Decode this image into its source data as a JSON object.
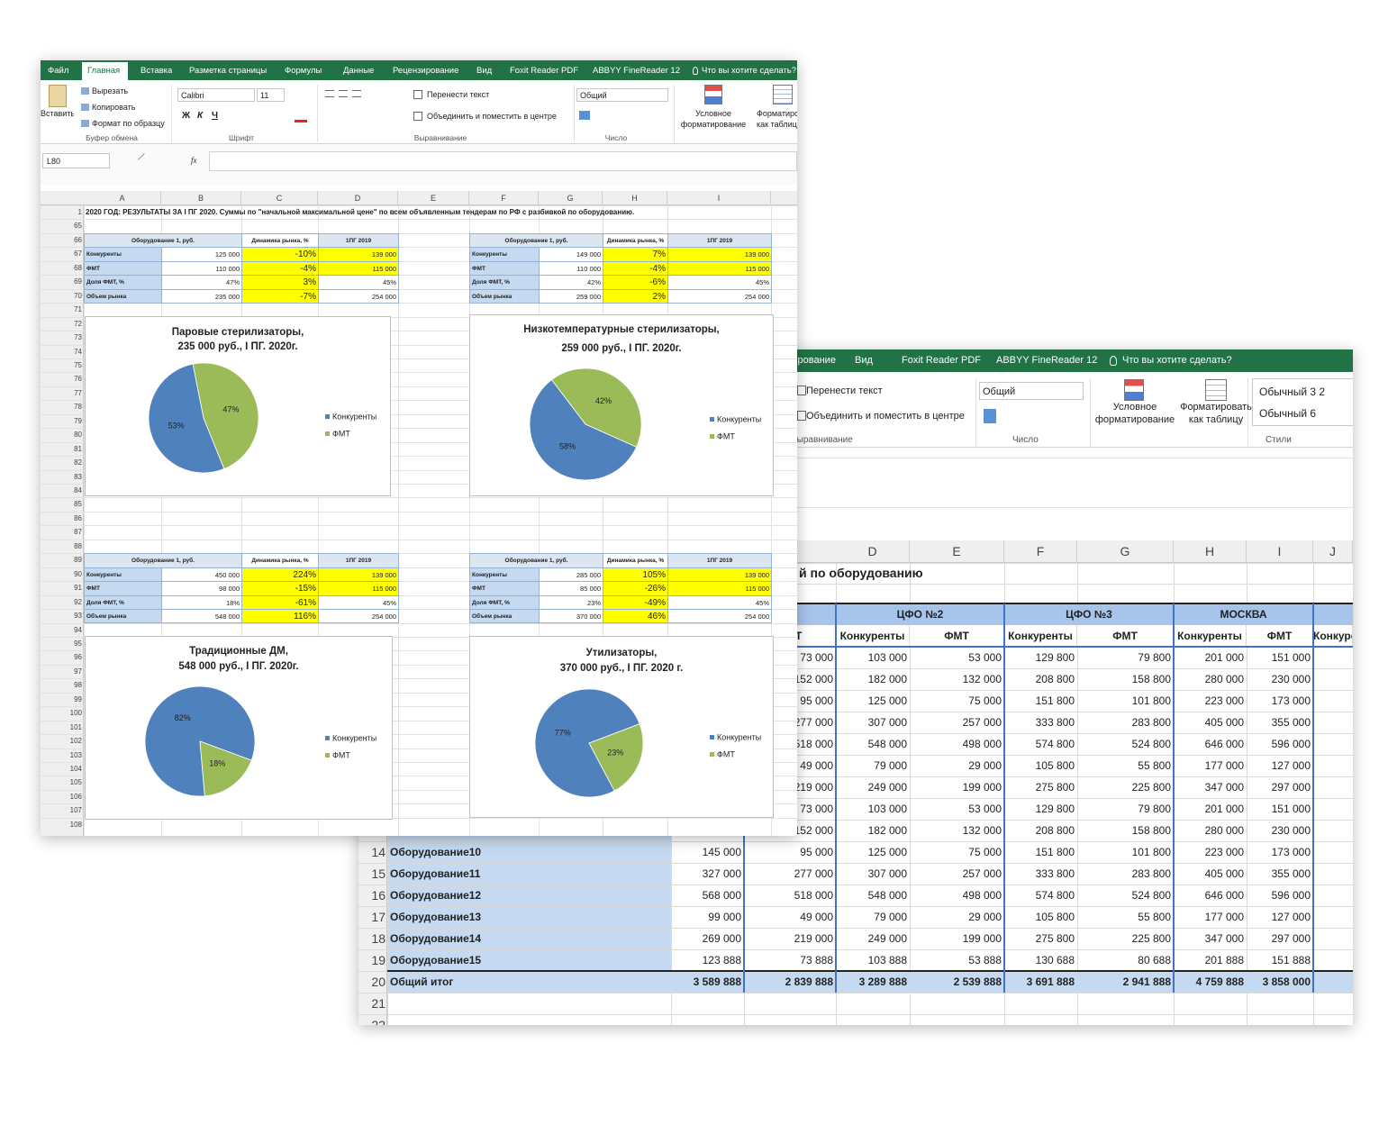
{
  "back": {
    "tabs": [
      "Рецензирование",
      "Вид",
      "Foxit Reader PDF",
      "ABBYY FineReader 12",
      "Что вы хотите сделать?"
    ],
    "ribbon": {
      "wrap": "Перенести текст",
      "merge": "Объединить и поместить в центре",
      "align_group": "Выравнивание",
      "number_format": "Общий",
      "number_group": "Число",
      "cond_format": [
        "Условное",
        "форматирование"
      ],
      "format_table": [
        "Форматировать",
        "как таблицу"
      ],
      "styles_group": "Стили",
      "styles": [
        "Обычный 3 2",
        "Обычный 6"
      ]
    },
    "columns": [
      "D",
      "E",
      "F",
      "G",
      "H",
      "I",
      "J"
    ],
    "title": "й по оборудованию",
    "groups": [
      "ЦФО №2",
      "ЦФО №3",
      "МОСКВА"
    ],
    "sub_headers": [
      "ФМТ",
      "Конкуренты",
      "ФМТ",
      "Конкуренты",
      "ФМТ",
      "Конкуренты",
      "ФМТ",
      "Конкуренты"
    ],
    "row_numbers": [
      14,
      15,
      16,
      17,
      18,
      19,
      20,
      21,
      22
    ],
    "rows": [
      {
        "label": null,
        "cells": [
          null,
          "73 000",
          "103 000",
          "53 000",
          "129 800",
          "79 800",
          "201 000",
          "151 000"
        ]
      },
      {
        "label": null,
        "cells": [
          null,
          "152 000",
          "182 000",
          "132 000",
          "208 800",
          "158 800",
          "280 000",
          "230 000"
        ]
      },
      {
        "label": null,
        "cells": [
          null,
          "95 000",
          "125 000",
          "75 000",
          "151 800",
          "101 800",
          "223 000",
          "173 000"
        ]
      },
      {
        "label": null,
        "cells": [
          null,
          "277 000",
          "307 000",
          "257 000",
          "333 800",
          "283 800",
          "405 000",
          "355 000"
        ]
      },
      {
        "label": null,
        "cells": [
          null,
          "518 000",
          "548 000",
          "498 000",
          "574 800",
          "524 800",
          "646 000",
          "596 000"
        ]
      },
      {
        "label": null,
        "cells": [
          null,
          "49 000",
          "79 000",
          "29 000",
          "105 800",
          "55 800",
          "177 000",
          "127 000"
        ]
      },
      {
        "label": null,
        "cells": [
          null,
          "219 000",
          "249 000",
          "199 000",
          "275 800",
          "225 800",
          "347 000",
          "297 000"
        ]
      },
      {
        "label": null,
        "cells": [
          null,
          "73 000",
          "103 000",
          "53 000",
          "129 800",
          "79 800",
          "201 000",
          "151 000"
        ]
      },
      {
        "label": null,
        "cells": [
          null,
          "152 000",
          "182 000",
          "132 000",
          "208 800",
          "158 800",
          "280 000",
          "230 000"
        ]
      },
      {
        "label": "Оборудование10",
        "cells": [
          "145 000",
          "95 000",
          "125 000",
          "75 000",
          "151 800",
          "101 800",
          "223 000",
          "173 000"
        ]
      },
      {
        "label": "Оборудование11",
        "cells": [
          "327 000",
          "277 000",
          "307 000",
          "257 000",
          "333 800",
          "283 800",
          "405 000",
          "355 000"
        ]
      },
      {
        "label": "Оборудование12",
        "cells": [
          "568 000",
          "518 000",
          "548 000",
          "498 000",
          "574 800",
          "524 800",
          "646 000",
          "596 000"
        ]
      },
      {
        "label": "Оборудование13",
        "cells": [
          "99 000",
          "49 000",
          "79 000",
          "29 000",
          "105 800",
          "55 800",
          "177 000",
          "127 000"
        ]
      },
      {
        "label": "Оборудование14",
        "cells": [
          "269 000",
          "219 000",
          "249 000",
          "199 000",
          "275 800",
          "225 800",
          "347 000",
          "297 000"
        ]
      },
      {
        "label": "Оборудование15",
        "cells": [
          "123 888",
          "73 888",
          "103 888",
          "53 888",
          "130 688",
          "80 688",
          "201 888",
          "151 888"
        ]
      },
      {
        "label": "Общий итог",
        "cells": [
          "3 589 888",
          "2 839 888",
          "3 289 888",
          "2 539 888",
          "3 691 888",
          "2 941 888",
          "4 759 888",
          "3 858 000"
        ]
      }
    ]
  },
  "front": {
    "tabs": [
      "Файл",
      "Главная",
      "Вставка",
      "Разметка страницы",
      "Формулы",
      "Данные",
      "Рецензирование",
      "Вид",
      "Foxit Reader PDF",
      "ABBYY FineReader 12",
      "Что вы хотите сделать?"
    ],
    "ribbon": {
      "paste": "Вставить",
      "cut": "Вырезать",
      "copy": "Копировать",
      "format_painter": "Формат по образцу",
      "clipboard_group": "Буфер обмена",
      "font": "Calibri",
      "size": "11",
      "bold": "Ж",
      "italic": "К",
      "underline": "Ч",
      "font_group": "Шрифт",
      "wrap": "Перенести текст",
      "merge": "Объединить и поместить в центре",
      "align_group": "Выравнивание",
      "number_format": "Общий",
      "number_group": "Число",
      "cond_format": [
        "Условное",
        "форматирование"
      ],
      "format_table": [
        "Форматиро",
        "как таблиц"
      ]
    },
    "name_box": "L80",
    "fx": "fx",
    "outline_levels": [
      "1",
      "2"
    ],
    "columns": [
      "A",
      "B",
      "C",
      "D",
      "E",
      "F",
      "G",
      "H",
      "I"
    ],
    "rows": [
      1,
      65,
      66,
      67,
      68,
      69,
      70,
      71,
      72,
      73,
      74,
      75,
      76,
      77,
      78,
      79,
      80,
      81,
      82,
      83,
      84,
      85,
      86,
      87,
      88,
      89,
      90,
      91,
      92,
      93,
      94,
      95,
      96,
      97,
      98,
      99,
      100,
      101,
      102,
      103,
      104,
      105,
      106,
      107,
      108
    ],
    "title": "2020 ГОД: РЕЗУЛЬТАТЫ ЗА I ПГ 2020. Суммы по \"начальной максимальной цене\" по всем объявленным тендерам по РФ с разбивкой по оборудованию.",
    "tables": [
      {
        "header": [
          "Оборудование 1, руб.",
          "Динамика рынка, %",
          "1ПГ 2019"
        ],
        "rows": [
          {
            "label": "Конкуренты",
            "cells": [
              "125 000",
              "-10%",
              "139 000"
            ]
          },
          {
            "label": "ФМТ",
            "cells": [
              "110 000",
              "-4%",
              "115 000"
            ]
          },
          {
            "label": "Доля ФМТ, %",
            "cells": [
              "47%",
              "3%",
              "45%"
            ]
          },
          {
            "label": "Объем рынка",
            "cells": [
              "235 000",
              "-7%",
              "254 000"
            ]
          }
        ]
      },
      {
        "header": [
          "Оборудование 1, руб.",
          "Динамика рынка, %",
          "1ПГ 2019"
        ],
        "rows": [
          {
            "label": "Конкуренты",
            "cells": [
              "149 000",
              "7%",
              "139 000"
            ]
          },
          {
            "label": "ФМТ",
            "cells": [
              "110 000",
              "-4%",
              "115 000"
            ]
          },
          {
            "label": "Доля ФМТ, %",
            "cells": [
              "42%",
              "-6%",
              "45%"
            ]
          },
          {
            "label": "Объем рынка",
            "cells": [
              "259 000",
              "2%",
              "254 000"
            ]
          }
        ]
      },
      {
        "header": [
          "Оборудование 1, руб.",
          "Динамика рынка, %",
          "1ПГ 2019"
        ],
        "rows": [
          {
            "label": "Конкуренты",
            "cells": [
              "450 000",
              "224%",
              "139 000"
            ]
          },
          {
            "label": "ФМТ",
            "cells": [
              "98 000",
              "-15%",
              "115 000"
            ]
          },
          {
            "label": "Доля ФМТ, %",
            "cells": [
              "18%",
              "-61%",
              "45%"
            ]
          },
          {
            "label": "Объем рынка",
            "cells": [
              "548 000",
              "116%",
              "254 000"
            ]
          }
        ]
      },
      {
        "header": [
          "Оборудование 1, руб.",
          "Динамика рынка, %",
          "1ПГ 2019"
        ],
        "rows": [
          {
            "label": "Конкуренты",
            "cells": [
              "285 000",
              "105%",
              "139 000"
            ]
          },
          {
            "label": "ФМТ",
            "cells": [
              "85 000",
              "-26%",
              "115 000"
            ]
          },
          {
            "label": "Доля ФМТ, %",
            "cells": [
              "23%",
              "-49%",
              "45%"
            ]
          },
          {
            "label": "Объем рынка",
            "cells": [
              "370 000",
              "46%",
              "254 000"
            ]
          }
        ]
      }
    ],
    "charts": [
      {
        "type": "pie",
        "title": [
          "Паровые стерилизаторы,",
          "235 000 руб., I ПГ. 2020г."
        ],
        "legend": [
          "Конкуренты",
          "ФМТ"
        ],
        "values": [
          53,
          47
        ],
        "value_labels": [
          "53%",
          "47%"
        ],
        "colors": [
          "#4f81bd",
          "#9bbb59"
        ]
      },
      {
        "type": "pie",
        "title": [
          "Низкотемпературные стерилизаторы,",
          "259 000 руб., I ПГ. 2020г."
        ],
        "legend": [
          "Конкуренты",
          "ФМТ"
        ],
        "values": [
          58,
          42
        ],
        "value_labels": [
          "58%",
          "42%"
        ],
        "colors": [
          "#4f81bd",
          "#9bbb59"
        ]
      },
      {
        "type": "pie",
        "title": [
          "Традиционные ДМ,",
          "548 000 руб., I ПГ. 2020г."
        ],
        "legend": [
          "Конкуренты",
          "ФМТ"
        ],
        "values": [
          82,
          18
        ],
        "value_labels": [
          "82%",
          "18%"
        ],
        "colors": [
          "#4f81bd",
          "#9bbb59"
        ]
      },
      {
        "type": "pie",
        "title": [
          "Утилизаторы,",
          "370 000 руб., I ПГ. 2020 г."
        ],
        "legend": [
          "Конкуренты",
          "ФМТ"
        ],
        "values": [
          77,
          23
        ],
        "value_labels": [
          "77%",
          "23%"
        ],
        "colors": [
          "#4f81bd",
          "#9bbb59"
        ]
      }
    ]
  }
}
